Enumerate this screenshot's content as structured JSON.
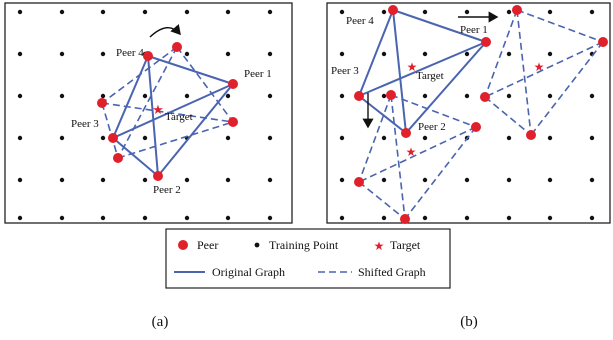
{
  "panels": [
    {
      "id": "a",
      "caption": "(a)",
      "peer_labels": [
        "Peer 4",
        "Peer 1",
        "Peer 3",
        "Peer 2"
      ],
      "target_label": "Target"
    },
    {
      "id": "b",
      "caption": "(b)",
      "peer_labels": [
        "Peer 4",
        "Peer 1",
        "Peer 3",
        "Peer 2"
      ],
      "target_label": "Target"
    }
  ],
  "legend": {
    "peer": "Peer",
    "training_point": "Training Point",
    "target": "Target",
    "original_graph": "Original Graph",
    "shifted_graph": "Shifted Graph"
  },
  "colors": {
    "peer": "#e0202a",
    "target": "#e0202a",
    "training_point": "#111111",
    "edge": "#4a64b0",
    "frame": "#222222"
  },
  "icons": {
    "rotate_arrow": "curved-arrow-icon",
    "shift_right": "arrow-right-icon",
    "shift_down": "arrow-down-icon"
  }
}
